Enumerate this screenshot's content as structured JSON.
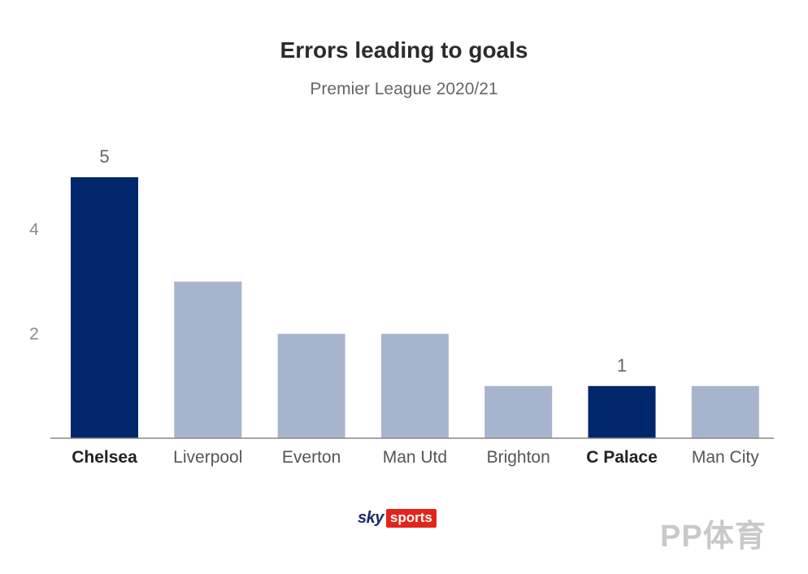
{
  "title": "Errors leading to goals",
  "subtitle": "Premier League 2020/21",
  "brand": {
    "sky": "sky",
    "sports": "sports"
  },
  "watermark": "PP体育",
  "colors": {
    "highlight": "#00266b",
    "normal": "#a7b4ce",
    "axis": "#888888"
  },
  "chart_data": {
    "type": "bar",
    "title": "Errors leading to goals",
    "subtitle": "Premier League 2020/21",
    "categories": [
      "Chelsea",
      "Liverpool",
      "Everton",
      "Man Utd",
      "Brighton",
      "C Palace",
      "Man City"
    ],
    "values": [
      5,
      3,
      2,
      2,
      1,
      1,
      1
    ],
    "highlighted": [
      "Chelsea",
      "C Palace"
    ],
    "data_labels": {
      "Chelsea": "5",
      "C Palace": "1"
    },
    "yticks": [
      2,
      4
    ],
    "ylim": [
      0,
      5
    ],
    "grid": false,
    "xlabel": "",
    "ylabel": ""
  }
}
